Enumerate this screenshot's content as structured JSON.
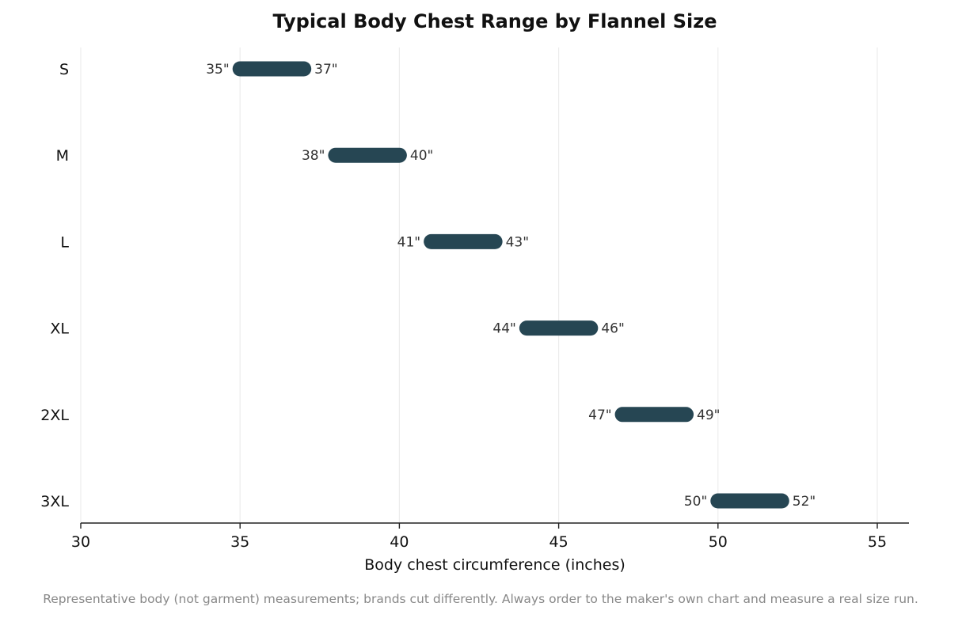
{
  "chart_data": {
    "type": "range-bar",
    "title": "Typical Body Chest Range by Flannel Size",
    "xlabel": "Body chest circumference (inches)",
    "ylabel": "",
    "xlim": [
      30,
      56
    ],
    "xticks": [
      30,
      35,
      40,
      45,
      50,
      55
    ],
    "grid": true,
    "categories": [
      "S",
      "M",
      "L",
      "XL",
      "2XL",
      "3XL"
    ],
    "ranges": [
      {
        "size": "S",
        "min": 35,
        "max": 37,
        "min_label": "35\"",
        "max_label": "37\""
      },
      {
        "size": "M",
        "min": 38,
        "max": 40,
        "min_label": "38\"",
        "max_label": "40\""
      },
      {
        "size": "L",
        "min": 41,
        "max": 43,
        "min_label": "41\"",
        "max_label": "43\""
      },
      {
        "size": "XL",
        "min": 44,
        "max": 46,
        "min_label": "44\"",
        "max_label": "46\""
      },
      {
        "size": "2XL",
        "min": 47,
        "max": 49,
        "min_label": "47\"",
        "max_label": "49\""
      },
      {
        "size": "3XL",
        "min": 50,
        "max": 52,
        "min_label": "50\"",
        "max_label": "52\""
      }
    ],
    "bar_color": "#264653",
    "footnote": "Representative body (not garment) measurements; brands cut differently. Always order to the maker's own chart and measure a real size run."
  }
}
